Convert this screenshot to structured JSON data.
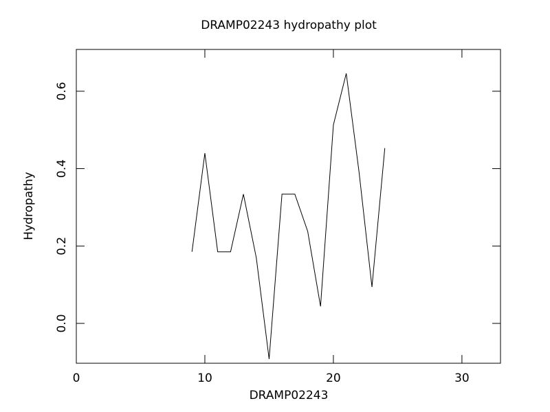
{
  "chart_data": {
    "type": "line",
    "title": "DRAMP02243 hydropathy plot",
    "xlabel": "DRAMP02243",
    "ylabel": "Hydropathy",
    "x": [
      9,
      10,
      11,
      12,
      13,
      14,
      15,
      16,
      17,
      18,
      19,
      20,
      21,
      22,
      23,
      24
    ],
    "series": [
      {
        "color": "#000000",
        "values": [
          0.185,
          0.44,
          0.185,
          0.185,
          0.334,
          0.17,
          -0.092,
          0.334,
          0.334,
          0.238,
          0.044,
          0.513,
          0.646,
          0.39,
          0.094,
          0.453
        ]
      }
    ],
    "xlim": [
      0,
      33
    ],
    "xticks": [
      0,
      10,
      20,
      30
    ],
    "ylim": [
      -0.103,
      0.708
    ],
    "yticks": [
      {
        "value": 0,
        "label": "0.0"
      },
      0.2,
      0.4,
      0.6
    ]
  }
}
